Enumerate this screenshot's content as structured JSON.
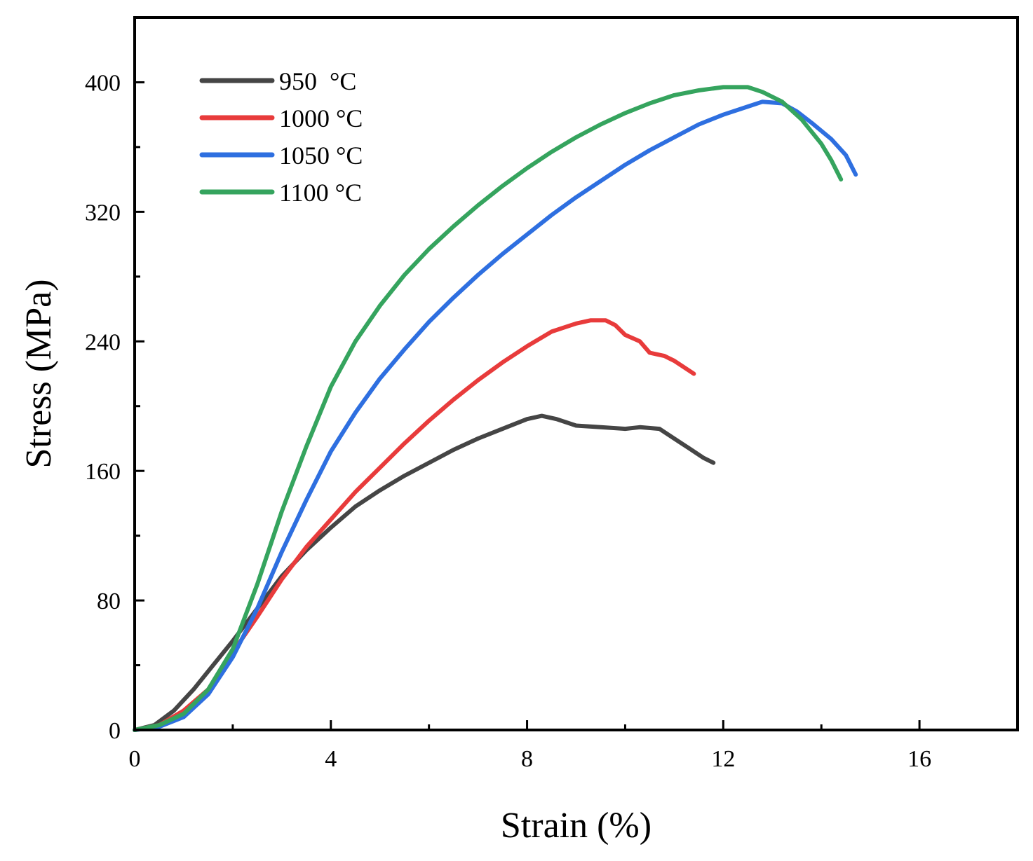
{
  "chart_data": {
    "type": "line",
    "title": "",
    "xlabel": "Strain (%)",
    "ylabel": "Stress (MPa)",
    "xlim": [
      0,
      18
    ],
    "ylim": [
      0,
      440
    ],
    "x_ticks": [
      0,
      4,
      8,
      12,
      16
    ],
    "y_ticks": [
      0,
      80,
      160,
      240,
      320,
      400
    ],
    "x_tick_labels": [
      "0",
      "4",
      "8",
      "12",
      "16"
    ],
    "y_tick_labels": [
      "0",
      "80",
      "160",
      "240",
      "320",
      "400"
    ],
    "grid": false,
    "legend": {
      "position": "top-left"
    },
    "series": [
      {
        "name": "950  °C",
        "color": "#454545",
        "points": [
          [
            0,
            0
          ],
          [
            0.4,
            3
          ],
          [
            0.8,
            12
          ],
          [
            1.2,
            25
          ],
          [
            1.6,
            40
          ],
          [
            2.0,
            55
          ],
          [
            2.5,
            75
          ],
          [
            3.0,
            95
          ],
          [
            3.5,
            111
          ],
          [
            4.0,
            125
          ],
          [
            4.5,
            138
          ],
          [
            5.0,
            148
          ],
          [
            5.5,
            157
          ],
          [
            6.0,
            165
          ],
          [
            6.5,
            173
          ],
          [
            7.0,
            180
          ],
          [
            7.5,
            186
          ],
          [
            8.0,
            192
          ],
          [
            8.3,
            194
          ],
          [
            8.6,
            192
          ],
          [
            9.0,
            188
          ],
          [
            9.5,
            187
          ],
          [
            10.0,
            186
          ],
          [
            10.3,
            187
          ],
          [
            10.7,
            186
          ],
          [
            11.0,
            180
          ],
          [
            11.3,
            174
          ],
          [
            11.6,
            168
          ],
          [
            11.8,
            165
          ]
        ]
      },
      {
        "name": "1000 °C",
        "color": "#e83b3b",
        "points": [
          [
            0,
            0
          ],
          [
            0.5,
            3
          ],
          [
            1.0,
            12
          ],
          [
            1.5,
            25
          ],
          [
            2.0,
            48
          ],
          [
            2.5,
            70
          ],
          [
            3.0,
            93
          ],
          [
            3.5,
            113
          ],
          [
            4.0,
            130
          ],
          [
            4.5,
            147
          ],
          [
            5.0,
            162
          ],
          [
            5.5,
            177
          ],
          [
            6.0,
            191
          ],
          [
            6.5,
            204
          ],
          [
            7.0,
            216
          ],
          [
            7.5,
            227
          ],
          [
            8.0,
            237
          ],
          [
            8.5,
            246
          ],
          [
            9.0,
            251
          ],
          [
            9.3,
            253
          ],
          [
            9.6,
            253
          ],
          [
            9.8,
            250
          ],
          [
            10.0,
            244
          ],
          [
            10.3,
            240
          ],
          [
            10.5,
            233
          ],
          [
            10.8,
            231
          ],
          [
            11.0,
            228
          ],
          [
            11.2,
            224
          ],
          [
            11.4,
            220
          ]
        ]
      },
      {
        "name": "1050 °C",
        "color": "#2e6fe0",
        "points": [
          [
            0,
            0
          ],
          [
            0.5,
            2
          ],
          [
            1.0,
            8
          ],
          [
            1.5,
            22
          ],
          [
            2.0,
            45
          ],
          [
            2.5,
            75
          ],
          [
            3.0,
            110
          ],
          [
            3.5,
            142
          ],
          [
            4.0,
            172
          ],
          [
            4.5,
            196
          ],
          [
            5.0,
            217
          ],
          [
            5.5,
            235
          ],
          [
            6.0,
            252
          ],
          [
            6.5,
            267
          ],
          [
            7.0,
            281
          ],
          [
            7.5,
            294
          ],
          [
            8.0,
            306
          ],
          [
            8.5,
            318
          ],
          [
            9.0,
            329
          ],
          [
            9.5,
            339
          ],
          [
            10.0,
            349
          ],
          [
            10.5,
            358
          ],
          [
            11.0,
            366
          ],
          [
            11.5,
            374
          ],
          [
            12.0,
            380
          ],
          [
            12.5,
            385
          ],
          [
            12.8,
            388
          ],
          [
            13.2,
            387
          ],
          [
            13.5,
            382
          ],
          [
            13.8,
            375
          ],
          [
            14.2,
            365
          ],
          [
            14.5,
            355
          ],
          [
            14.7,
            343
          ]
        ]
      },
      {
        "name": "1100 °C",
        "color": "#35a45e",
        "points": [
          [
            0,
            0
          ],
          [
            0.5,
            3
          ],
          [
            1.0,
            10
          ],
          [
            1.5,
            25
          ],
          [
            2.0,
            50
          ],
          [
            2.5,
            90
          ],
          [
            3.0,
            135
          ],
          [
            3.5,
            175
          ],
          [
            4.0,
            212
          ],
          [
            4.5,
            240
          ],
          [
            5.0,
            262
          ],
          [
            5.5,
            281
          ],
          [
            6.0,
            297
          ],
          [
            6.5,
            311
          ],
          [
            7.0,
            324
          ],
          [
            7.5,
            336
          ],
          [
            8.0,
            347
          ],
          [
            8.5,
            357
          ],
          [
            9.0,
            366
          ],
          [
            9.5,
            374
          ],
          [
            10.0,
            381
          ],
          [
            10.5,
            387
          ],
          [
            11.0,
            392
          ],
          [
            11.5,
            395
          ],
          [
            12.0,
            397
          ],
          [
            12.5,
            397
          ],
          [
            12.8,
            394
          ],
          [
            13.2,
            388
          ],
          [
            13.6,
            377
          ],
          [
            14.0,
            362
          ],
          [
            14.2,
            352
          ],
          [
            14.4,
            340
          ]
        ]
      }
    ]
  }
}
